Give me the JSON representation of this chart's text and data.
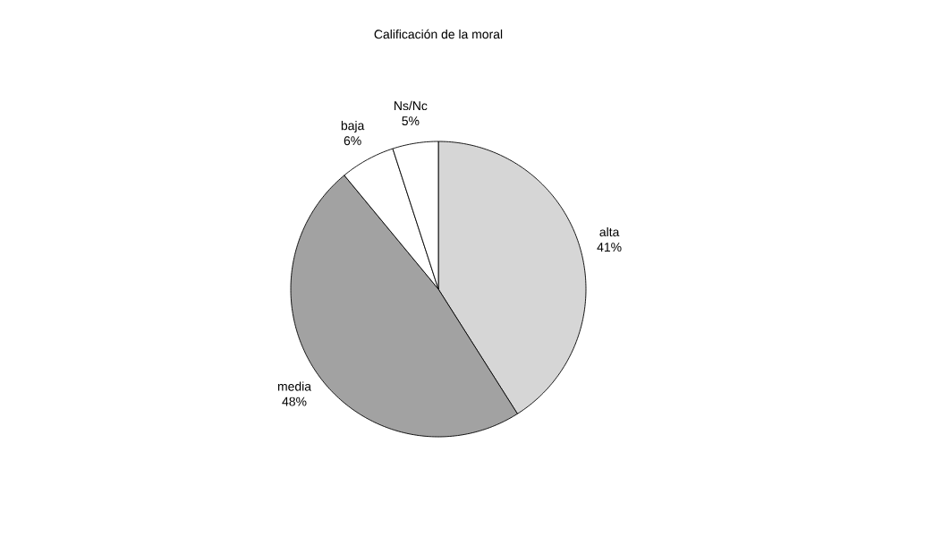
{
  "chart_data": {
    "type": "pie",
    "title": "Calificación de la moral",
    "categories": [
      "alta",
      "media",
      "baja",
      "Ns/Nc"
    ],
    "values": [
      41,
      48,
      6,
      5
    ],
    "colors": [
      "#d6d6d6",
      "#a2a2a2",
      "#ffffff",
      "#ffffff"
    ],
    "value_labels": [
      "41%",
      "48%",
      "6%",
      "5%"
    ]
  }
}
